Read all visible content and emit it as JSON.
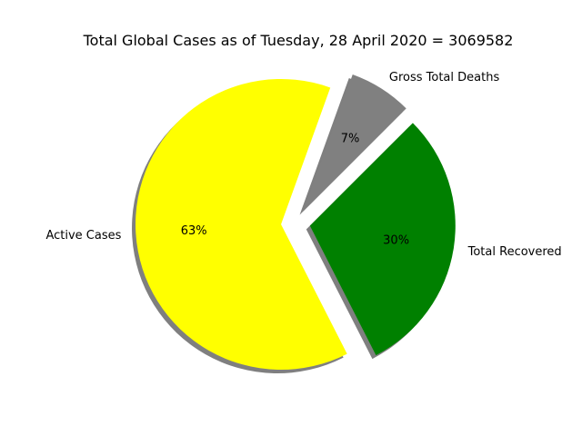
{
  "chart_data": {
    "type": "pie",
    "title": "Total Global Cases as of Tuesday, 28 April 2020 = 3069582",
    "slices": [
      {
        "name": "Gross Total Deaths",
        "percent_label": "7%",
        "value": 7,
        "color": "#808080",
        "exploded": true
      },
      {
        "name": "Active Cases",
        "percent_label": "63%",
        "value": 63,
        "color": "#ffff00",
        "exploded": true
      },
      {
        "name": "Total Recovered",
        "percent_label": "30%",
        "value": 30,
        "color": "#008000",
        "exploded": true
      }
    ],
    "shadow": true,
    "legend": "none"
  }
}
